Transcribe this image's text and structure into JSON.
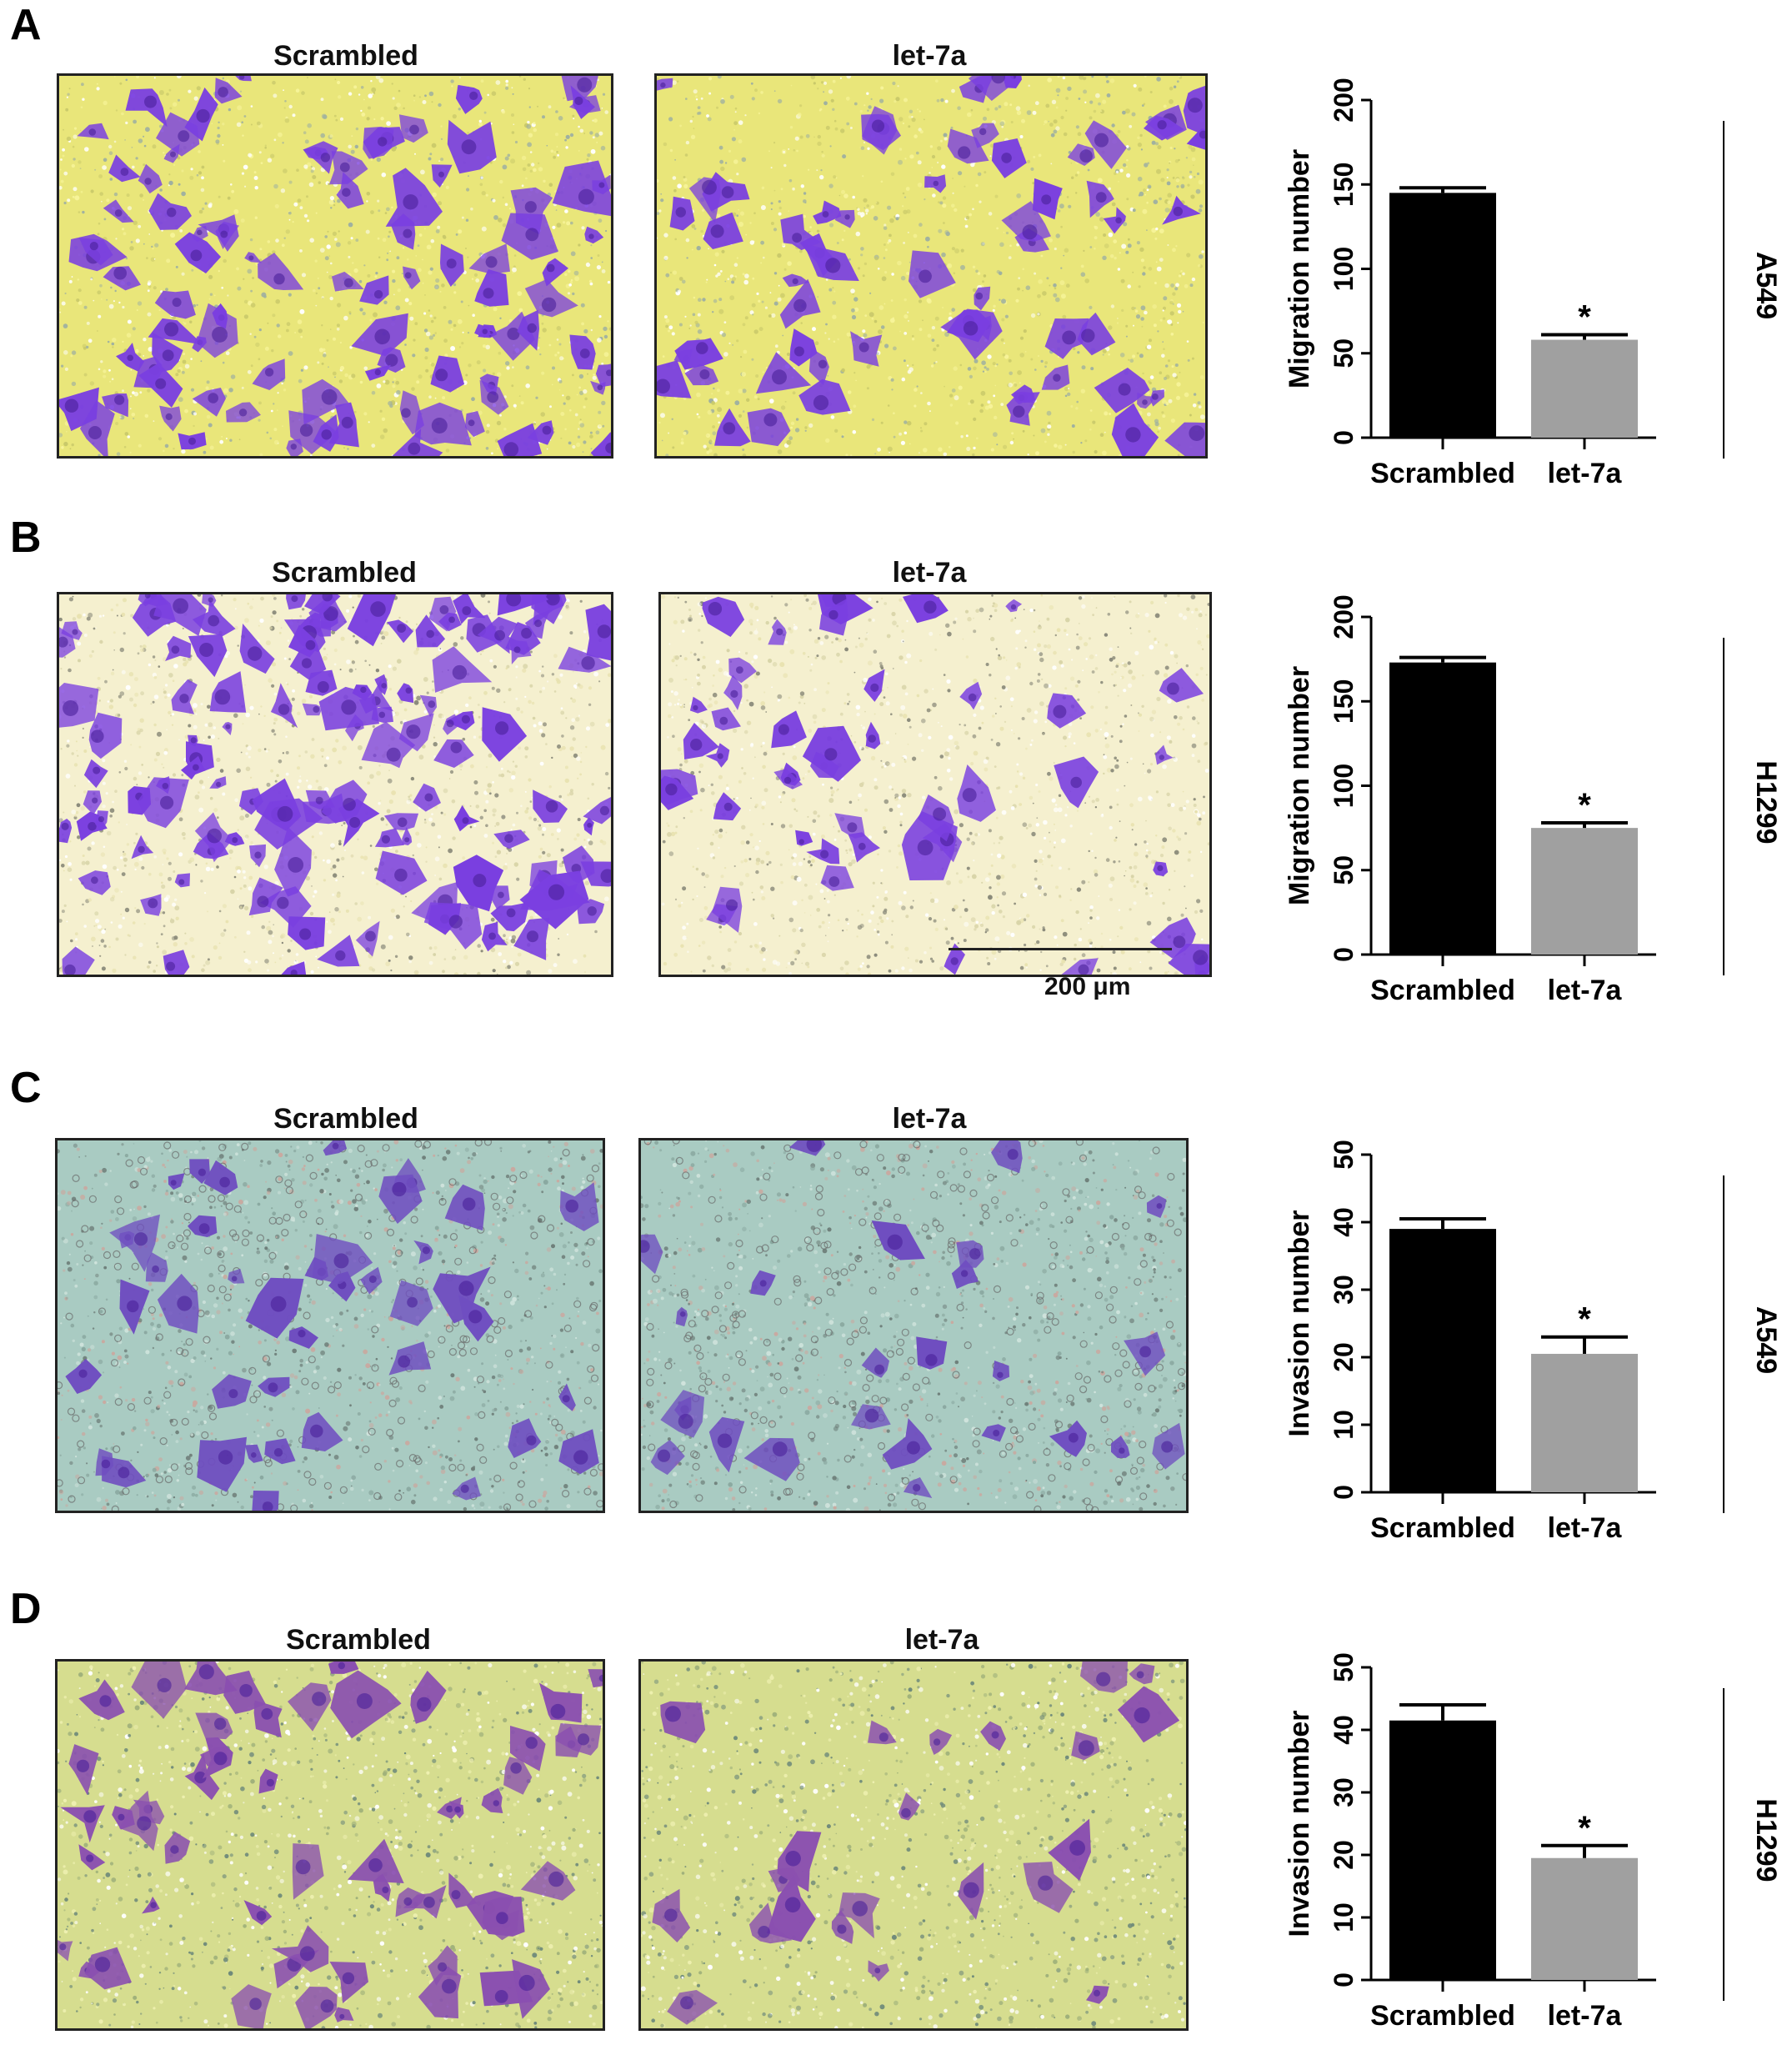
{
  "panels": [
    {
      "letter": "A",
      "image_left_title": "Scrambled",
      "image_right_title": "let-7a",
      "image_style": "yellow",
      "cell_color": "#7a3fe0",
      "cell_density_left": 90,
      "cell_density_right": 60,
      "chart_data": {
        "type": "bar",
        "categories": [
          "Scrambled",
          "let-7a"
        ],
        "values": [
          145,
          58
        ],
        "errors": [
          3,
          3
        ],
        "colors": [
          "#000000",
          "#a0a0a0"
        ],
        "ylabel": "Migration number",
        "ylim": [
          0,
          200
        ],
        "yticks": [
          0,
          50,
          100,
          150,
          200
        ],
        "significance": [
          "",
          "*"
        ],
        "side_label": "A549"
      }
    },
    {
      "letter": "B",
      "image_left_title": "Scrambled",
      "image_right_title": "let-7a",
      "image_style": "cream",
      "cell_color": "#7a3fe0",
      "cell_density_left": 120,
      "cell_density_right": 45,
      "scale_bar_label": "200 μm",
      "chart_data": {
        "type": "bar",
        "categories": [
          "Scrambled",
          "let-7a"
        ],
        "values": [
          173,
          75
        ],
        "errors": [
          3,
          3
        ],
        "colors": [
          "#000000",
          "#a0a0a0"
        ],
        "ylabel": "Migration number",
        "ylim": [
          0,
          200
        ],
        "yticks": [
          0,
          50,
          100,
          150,
          200
        ],
        "significance": [
          "",
          "*"
        ],
        "side_label": "H1299"
      }
    },
    {
      "letter": "C",
      "image_left_title": "Scrambled",
      "image_right_title": "let-7a",
      "image_style": "teal",
      "cell_color": "#6f4ec0",
      "cell_density_left": 40,
      "cell_density_right": 25,
      "chart_data": {
        "type": "bar",
        "categories": [
          "Scrambled",
          "let-7a"
        ],
        "values": [
          39,
          20.5
        ],
        "errors": [
          1.5,
          2.5
        ],
        "colors": [
          "#000000",
          "#a0a0a0"
        ],
        "ylabel": "Invasion number",
        "ylim": [
          0,
          50
        ],
        "yticks": [
          0,
          10,
          20,
          30,
          40,
          50
        ],
        "significance": [
          "",
          "*"
        ],
        "side_label": "A549"
      }
    },
    {
      "letter": "D",
      "image_left_title": "Scrambled",
      "image_right_title": "let-7a",
      "image_style": "green-yellow",
      "cell_color": "#8a4fb0",
      "cell_density_left": 55,
      "cell_density_right": 22,
      "chart_data": {
        "type": "bar",
        "categories": [
          "Scrambled",
          "let-7a"
        ],
        "values": [
          41.5,
          19.5
        ],
        "errors": [
          2.5,
          2
        ],
        "colors": [
          "#000000",
          "#a0a0a0"
        ],
        "ylabel": "Invasion number",
        "ylim": [
          0,
          50
        ],
        "yticks": [
          0,
          10,
          20,
          30,
          40,
          50
        ],
        "significance": [
          "",
          "*"
        ],
        "side_label": "H1299"
      }
    }
  ]
}
